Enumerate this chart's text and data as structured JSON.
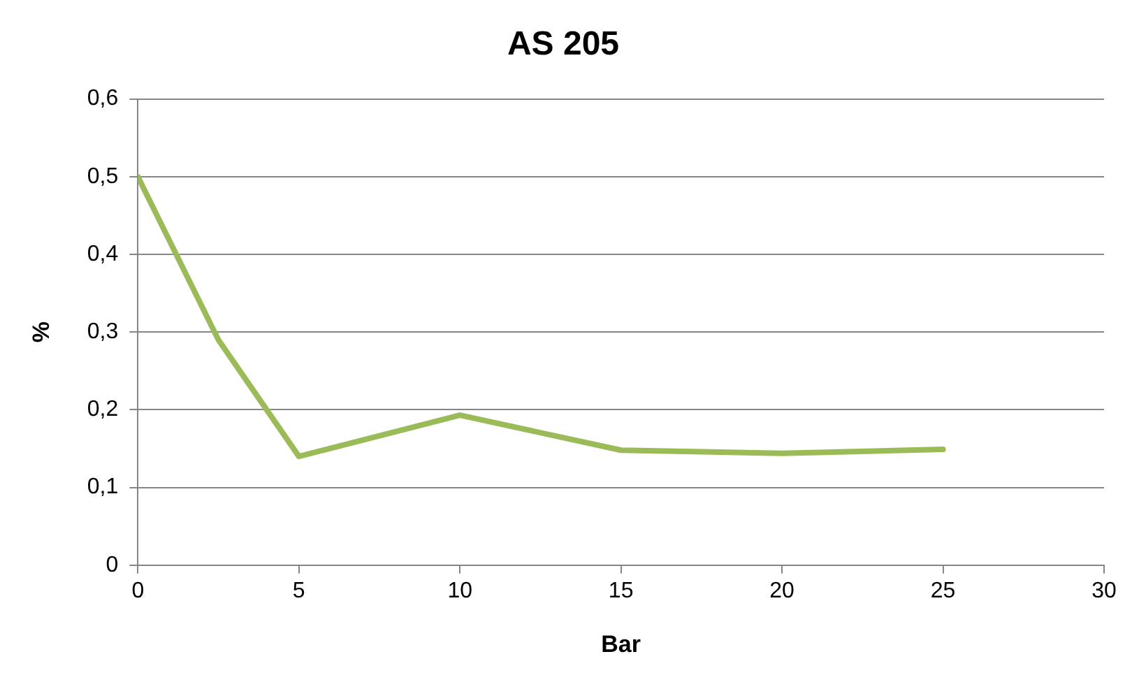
{
  "chart_data": {
    "type": "line",
    "title": "AS 205",
    "xlabel": "Bar",
    "ylabel": "%",
    "x": [
      0,
      2.5,
      5,
      10,
      15,
      20,
      25
    ],
    "series": [
      {
        "color": "#9bbb59",
        "values": [
          0.5,
          0.29,
          0.14,
          0.193,
          0.148,
          0.144,
          0.149
        ]
      }
    ],
    "xlim": [
      0,
      30
    ],
    "xticks": [
      0,
      5,
      10,
      15,
      20,
      25,
      30
    ],
    "ylim": [
      0,
      0.6
    ],
    "yticks": [
      {
        "value": 0,
        "label": "0"
      },
      {
        "value": 0.1,
        "label": "0,1"
      },
      {
        "value": 0.2,
        "label": "0,2"
      },
      {
        "value": 0.3,
        "label": "0,3"
      },
      {
        "value": 0.4,
        "label": "0,4"
      },
      {
        "value": 0.5,
        "label": "0,5"
      },
      {
        "value": 0.6,
        "label": "0,6"
      }
    ],
    "grid": "y",
    "legend": false,
    "marker": "none",
    "line_style": "solid"
  }
}
